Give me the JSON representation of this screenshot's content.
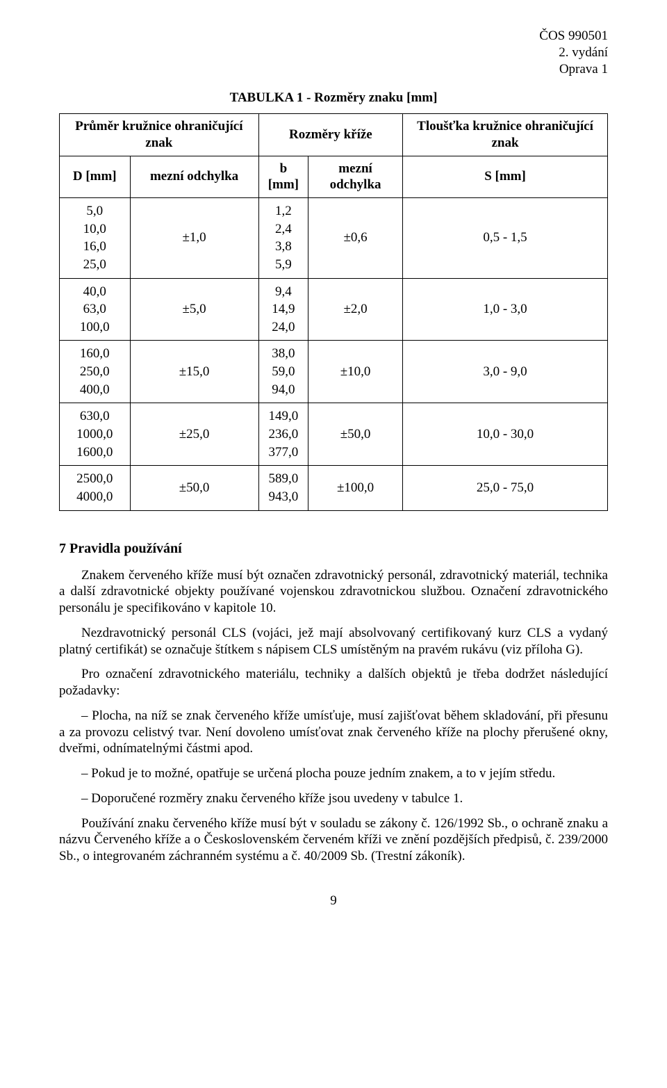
{
  "header": {
    "line1": "ČOS 990501",
    "line2": "2. vydání",
    "line3": "Oprava 1"
  },
  "table": {
    "title": "TABULKA 1 - Rozměry znaku [mm]",
    "head1": {
      "col12": "Průměr kružnice ohraničující znak",
      "col34": "Rozměry kříže",
      "col5": "Tloušťka kružnice ohraničující znak"
    },
    "head2": {
      "c1": "D [mm]",
      "c2": "mezní odchylka",
      "c3": "b [mm]",
      "c4": "mezní odchylka",
      "c5": "S [mm]"
    },
    "r1": {
      "d1": "5,0",
      "d2": "10,0",
      "d3": "16,0",
      "d4": "25,0",
      "dev": "±1,0",
      "b1": "1,2",
      "b2": "2,4",
      "b3": "3,8",
      "b4": "5,9",
      "bdev": "±0,6",
      "s": "0,5 - 1,5"
    },
    "r2": {
      "d1": "40,0",
      "d2": "63,0",
      "d3": "100,0",
      "dev": "±5,0",
      "b1": "9,4",
      "b2": "14,9",
      "b3": "24,0",
      "bdev": "±2,0",
      "s": "1,0 - 3,0"
    },
    "r3": {
      "d1": "160,0",
      "d2": "250,0",
      "d3": "400,0",
      "dev": "±15,0",
      "b1": "38,0",
      "b2": "59,0",
      "b3": "94,0",
      "bdev": "±10,0",
      "s": "3,0 - 9,0"
    },
    "r4": {
      "d1": "630,0",
      "d2": "1000,0",
      "d3": "1600,0",
      "dev": "±25,0",
      "b1": "149,0",
      "b2": "236,0",
      "b3": "377,0",
      "bdev": "±50,0",
      "s": "10,0 - 30,0"
    },
    "r5": {
      "d1": "2500,0",
      "d2": "4000,0",
      "dev": "±50,0",
      "b1": "589,0",
      "b2": "943,0",
      "bdev": "±100,0",
      "s": "25,0 - 75,0"
    }
  },
  "section": {
    "heading": "7   Pravidla používání",
    "p1": "Znakem červeného kříže musí být označen zdravotnický personál, zdravotnický materiál, technika a další zdravotnické objekty používané vojenskou zdravotnickou službou. Označení zdravotnického personálu je specifikováno v kapitole 10.",
    "p2": "Nezdravotnický personál CLS (vojáci, jež mají absolvovaný certifikovaný kurz CLS a vydaný platný certifikát) se označuje štítkem s nápisem CLS umístěným na pravém rukávu (viz příloha G).",
    "p3": "Pro označení zdravotnického materiálu, techniky a dalších objektů je třeba dodržet následující požadavky:",
    "b1": "Plocha, na níž se znak červeného kříže umísťuje, musí zajišťovat během skladování, při přesunu a za provozu celistvý tvar. Není dovoleno umísťovat znak červeného kříže na plochy přerušené okny, dveřmi, odnímatelnými částmi apod.",
    "b2": "Pokud je to možné, opatřuje se určená plocha pouze jedním znakem, a to v jejím středu.",
    "b3": "Doporučené rozměry znaku červeného kříže jsou uvedeny v tabulce 1.",
    "p4": "Používání znaku červeného kříže musí být v souladu se zákony č. 126/1992 Sb., o ochraně znaku a názvu Červeného kříže a o Československém červeném kříži ve znění pozdějších předpisů, č. 239/2000 Sb., o integrovaném záchranném systému a č. 40/2009 Sb. (Trestní zákoník)."
  },
  "footer": {
    "pageNumber": "9"
  }
}
